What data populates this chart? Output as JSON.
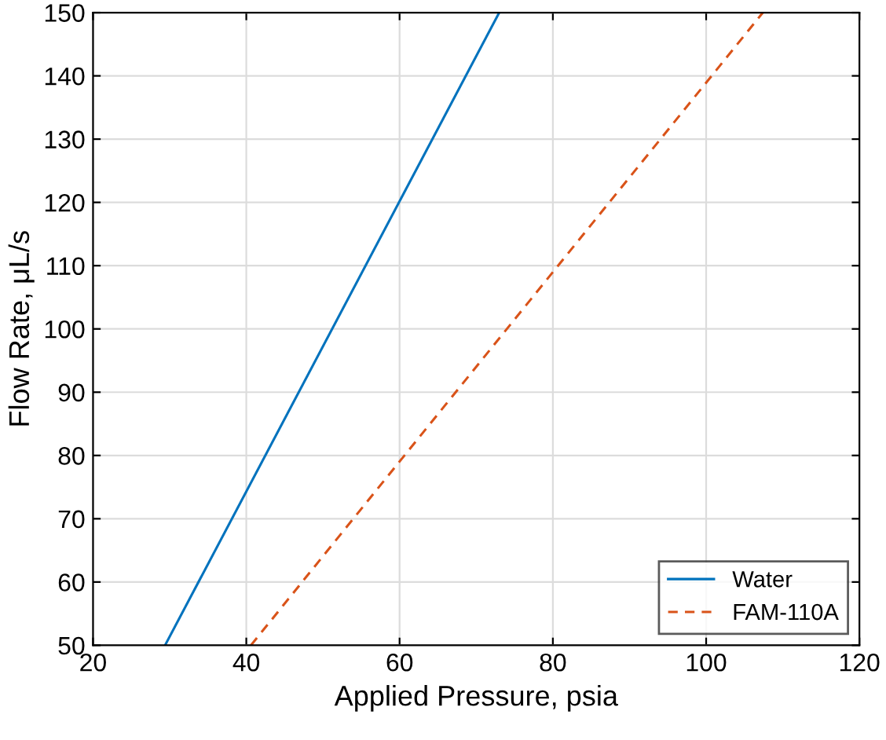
{
  "chart_data": {
    "type": "line",
    "xlabel": "Applied Pressure, psia",
    "ylabel": "Flow Rate, μL/s",
    "series": [
      {
        "name": "Water",
        "color": "#0072bd",
        "x": [
          29.4,
          73
        ],
        "values": [
          50,
          150
        ],
        "line_style": "solid"
      },
      {
        "name": "FAM-110A",
        "color": "#d95319",
        "x": [
          40.6,
          107.4
        ],
        "values": [
          50,
          150
        ],
        "line_style": "dashed"
      }
    ],
    "xlim": [
      20,
      120
    ],
    "xticks": [
      20,
      40,
      60,
      80,
      100,
      120
    ],
    "ylim": [
      50,
      150
    ],
    "yticks": [
      50,
      60,
      70,
      80,
      90,
      100,
      110,
      120,
      130,
      140,
      150
    ],
    "grid": true,
    "legend": "bottom right",
    "marker": "none"
  }
}
